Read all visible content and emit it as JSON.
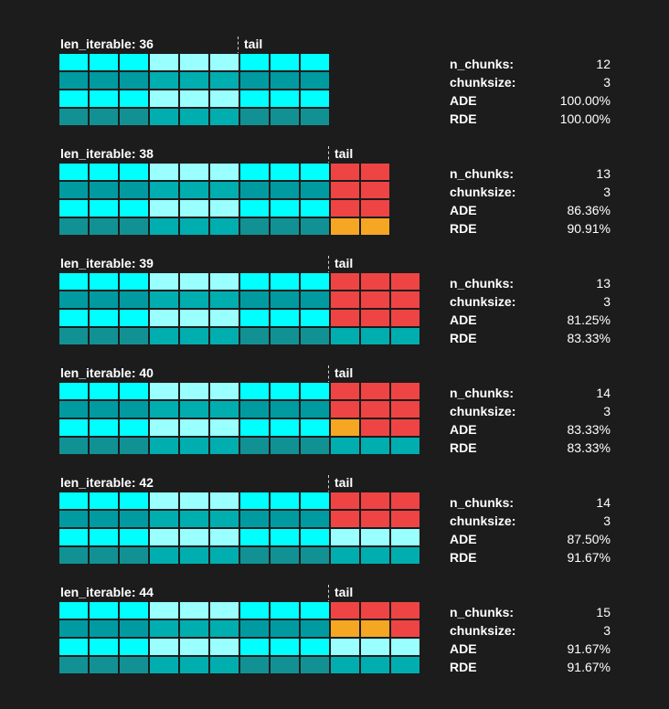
{
  "colors": {
    "background": "#1c1c1c",
    "worker_a_row": [
      "#00ffff",
      "#009ba1",
      "#00ffff",
      "#129194"
    ],
    "worker_b_row": [
      "#99ffff",
      "#00aeb0",
      "#99ffff",
      "#00aeb0"
    ],
    "tail_full": "#ef4444",
    "tail_partial": "#f5a623"
  },
  "panels": [
    {
      "len_label": "len_iterable: 36",
      "tail_label": "tail",
      "tail_col": 6,
      "tail_cells": [],
      "stats": [
        {
          "key": "n_chunks:",
          "value": "12"
        },
        {
          "key": "chunksize:",
          "value": "3"
        },
        {
          "key": "ADE",
          "value": "100.00%"
        },
        {
          "key": "RDE",
          "value": "100.00%"
        }
      ]
    },
    {
      "len_label": "len_iterable: 38",
      "tail_label": "tail",
      "tail_col": 9,
      "tail_cells": [
        [
          "red",
          "red"
        ],
        [
          "red",
          "red"
        ],
        [
          "red",
          "red"
        ],
        [
          "orange",
          "orange"
        ]
      ],
      "stats": [
        {
          "key": "n_chunks:",
          "value": "13"
        },
        {
          "key": "chunksize:",
          "value": "3"
        },
        {
          "key": "ADE",
          "value": "86.36%"
        },
        {
          "key": "RDE",
          "value": "90.91%"
        }
      ]
    },
    {
      "len_label": "len_iterable: 39",
      "tail_label": "tail",
      "tail_col": 9,
      "tail_cells": [
        [
          "red",
          "red",
          "red"
        ],
        [
          "red",
          "red",
          "red"
        ],
        [
          "red",
          "red",
          "red"
        ],
        [
          "base",
          "base",
          "base"
        ]
      ],
      "stats": [
        {
          "key": "n_chunks:",
          "value": "13"
        },
        {
          "key": "chunksize:",
          "value": "3"
        },
        {
          "key": "ADE",
          "value": "81.25%"
        },
        {
          "key": "RDE",
          "value": "83.33%"
        }
      ]
    },
    {
      "len_label": "len_iterable: 40",
      "tail_label": "tail",
      "tail_col": 9,
      "tail_cells": [
        [
          "red",
          "red",
          "red"
        ],
        [
          "red",
          "red",
          "red"
        ],
        [
          "orange",
          "red",
          "red"
        ],
        [
          "base",
          "base",
          "base"
        ]
      ],
      "stats": [
        {
          "key": "n_chunks:",
          "value": "14"
        },
        {
          "key": "chunksize:",
          "value": "3"
        },
        {
          "key": "ADE",
          "value": "83.33%"
        },
        {
          "key": "RDE",
          "value": "83.33%"
        }
      ]
    },
    {
      "len_label": "len_iterable: 42",
      "tail_label": "tail",
      "tail_col": 9,
      "tail_cells": [
        [
          "red",
          "red",
          "red"
        ],
        [
          "red",
          "red",
          "red"
        ],
        [
          "base",
          "base",
          "base"
        ],
        [
          "base",
          "base",
          "base"
        ]
      ],
      "stats": [
        {
          "key": "n_chunks:",
          "value": "14"
        },
        {
          "key": "chunksize:",
          "value": "3"
        },
        {
          "key": "ADE",
          "value": "87.50%"
        },
        {
          "key": "RDE",
          "value": "91.67%"
        }
      ]
    },
    {
      "len_label": "len_iterable: 44",
      "tail_label": "tail",
      "tail_col": 9,
      "tail_cells": [
        [
          "red",
          "red",
          "red"
        ],
        [
          "orange",
          "orange",
          "red"
        ],
        [
          "base",
          "base",
          "base"
        ],
        [
          "base",
          "base",
          "base"
        ]
      ],
      "stats": [
        {
          "key": "n_chunks:",
          "value": "15"
        },
        {
          "key": "chunksize:",
          "value": "3"
        },
        {
          "key": "ADE",
          "value": "91.67%"
        },
        {
          "key": "RDE",
          "value": "91.67%"
        }
      ]
    }
  ]
}
